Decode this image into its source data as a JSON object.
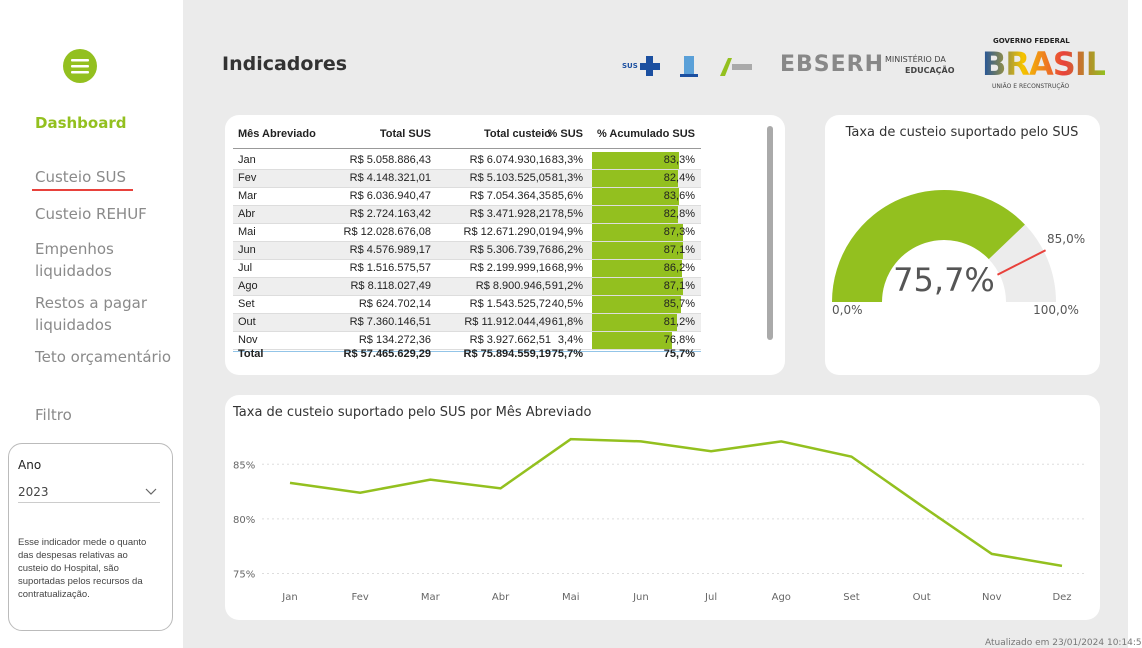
{
  "sidebar": {
    "heading": "Dashboard",
    "items": [
      "Custeio SUS",
      "Custeio REHUF",
      "Empenhos liquidados",
      "Restos a pagar liquidados",
      "Teto orçamentário",
      "Filtro"
    ],
    "filter": {
      "label": "Ano",
      "value": "2023"
    },
    "note": "Esse indicador mede o quanto das despesas relativas ao custeio do Hospital, são suportadas pelos recursos da contratualização."
  },
  "header": {
    "title": "Indicadores",
    "logos": [
      "SUS",
      "EBSERH",
      "MINISTÉRIO DA",
      "EDUCAÇÃO",
      "GOVERNO FEDERAL",
      "BRASIL",
      "UNIÃO E RECONSTRUÇÃO"
    ]
  },
  "table": {
    "columns": [
      "Mês Abreviado",
      "Total SUS",
      "Total custeio",
      "% SUS",
      "% Acumulado SUS"
    ],
    "rows": [
      [
        "Jan",
        "R$ 5.058.886,43",
        "R$ 6.074.930,16",
        "83,3%"
      ],
      [
        "Fev",
        "R$ 4.148.321,01",
        "R$ 5.103.525,05",
        "81,3%"
      ],
      [
        "Mar",
        "R$ 6.036.940,47",
        "R$ 7.054.364,35",
        "85,6%"
      ],
      [
        "Abr",
        "R$ 2.724.163,42",
        "R$ 3.471.928,21",
        "78,5%"
      ],
      [
        "Mai",
        "R$ 12.028.676,08",
        "R$ 12.671.290,01",
        "94,9%"
      ],
      [
        "Jun",
        "R$ 4.576.989,17",
        "R$ 5.306.739,76",
        "86,2%"
      ],
      [
        "Jul",
        "R$ 1.516.575,57",
        "R$ 2.199.999,16",
        "68,9%"
      ],
      [
        "Ago",
        "R$ 8.118.027,49",
        "R$ 8.900.946,5",
        "91,2%"
      ],
      [
        "Set",
        "R$ 624.702,14",
        "R$ 1.543.525,72",
        "40,5%"
      ],
      [
        "Out",
        "R$ 7.360.146,51",
        "R$ 11.912.044,49",
        "61,8%"
      ],
      [
        "Nov",
        "R$ 134.272,36",
        "R$ 3.927.662,51",
        "3,4%"
      ]
    ],
    "accumulated": {
      "values": [
        83.3,
        82.4,
        83.6,
        82.8,
        87.3,
        87.1,
        86.2,
        87.1,
        85.7,
        81.2,
        76.8
      ],
      "value_labels": [
        "83,3%",
        "82,4%",
        "83,6%",
        "82,8%",
        "87,3%",
        "87,1%",
        "86,2%",
        "87,1%",
        "85,7%",
        "81,2%",
        "76,8%"
      ],
      "color": "#93c01f"
    },
    "total": [
      "Total",
      "R$ 57.465.629,29",
      "R$ 75.894.559,19",
      "75,7%",
      "75,7%"
    ]
  },
  "chart_data": [
    {
      "type": "gauge",
      "title": "Taxa de custeio suportado pelo SUS",
      "value": 75.7,
      "value_label": "75,7%",
      "min": 0,
      "min_label": "0,0%",
      "max": 100,
      "max_label": "100,0%",
      "target": 85,
      "target_label": "85,0%",
      "color": "#93c01f",
      "target_color": "#e8413b"
    },
    {
      "type": "line",
      "title": "Taxa de custeio suportado pelo SUS por Mês Abreviado",
      "categories": [
        "Jan",
        "Fev",
        "Mar",
        "Abr",
        "Mai",
        "Jun",
        "Jul",
        "Ago",
        "Set",
        "Out",
        "Nov",
        "Dez"
      ],
      "series": [
        {
          "color": "#93c01f",
          "values": [
            83.3,
            82.4,
            83.6,
            82.8,
            87.3,
            87.1,
            86.2,
            87.1,
            85.7,
            81.2,
            76.8,
            75.7
          ]
        }
      ],
      "ylim": [
        74.5,
        87.5
      ],
      "yticks": [
        {
          "value": 75,
          "label": "75%"
        },
        {
          "value": 80,
          "label": "80%"
        },
        {
          "value": 85,
          "label": "85%"
        }
      ],
      "grid": true
    }
  ],
  "footer": "Atualizado em 23/01/2024 10:14:5"
}
